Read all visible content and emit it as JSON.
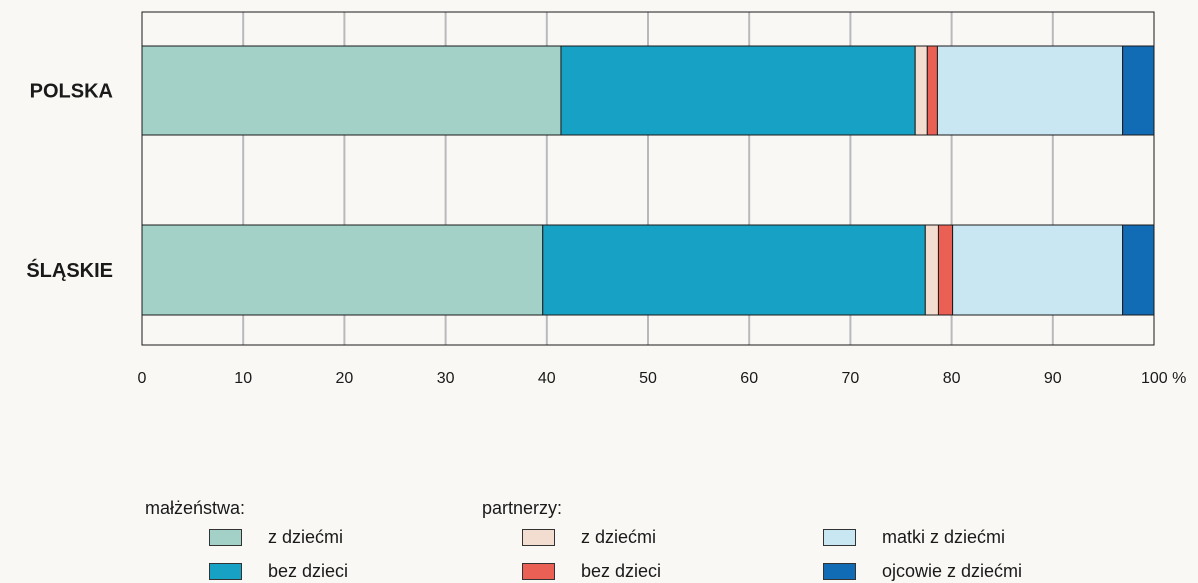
{
  "chart_data": {
    "type": "bar",
    "orientation": "horizontal",
    "stacked": true,
    "categories": [
      "POLSKA",
      "ŚLĄSKIE"
    ],
    "x_ticks": [
      "0",
      "10",
      "20",
      "30",
      "40",
      "50",
      "60",
      "70",
      "80",
      "90",
      "100 %"
    ],
    "xlim": [
      0,
      100
    ],
    "grid": true,
    "series": [
      {
        "key": "m_z",
        "values": [
          41.4,
          39.6
        ],
        "color": "#a3d1c8"
      },
      {
        "key": "m_bez",
        "values": [
          35.0,
          37.8
        ],
        "color": "#17a1c4"
      },
      {
        "key": "p_z",
        "values": [
          1.2,
          1.3
        ],
        "color": "#f2ddd0"
      },
      {
        "key": "p_bez",
        "values": [
          1.0,
          1.4
        ],
        "color": "#eb6055"
      },
      {
        "key": "matki",
        "values": [
          18.3,
          16.8
        ],
        "color": "#c8e7f3"
      },
      {
        "key": "ojcowie",
        "values": [
          3.1,
          3.1
        ],
        "color": "#116bb5"
      }
    ]
  },
  "legend": {
    "malzenstwa_title": "małżeństwa:",
    "partnerzy_title": "partnerzy:",
    "items": {
      "m_z": "z dziećmi",
      "m_bez": "bez dzieci",
      "p_z": "z dziećmi",
      "p_bez": "bez dzieci",
      "matki": "matki z dziećmi",
      "ojcowie": "ojcowie z dziećmi"
    }
  }
}
